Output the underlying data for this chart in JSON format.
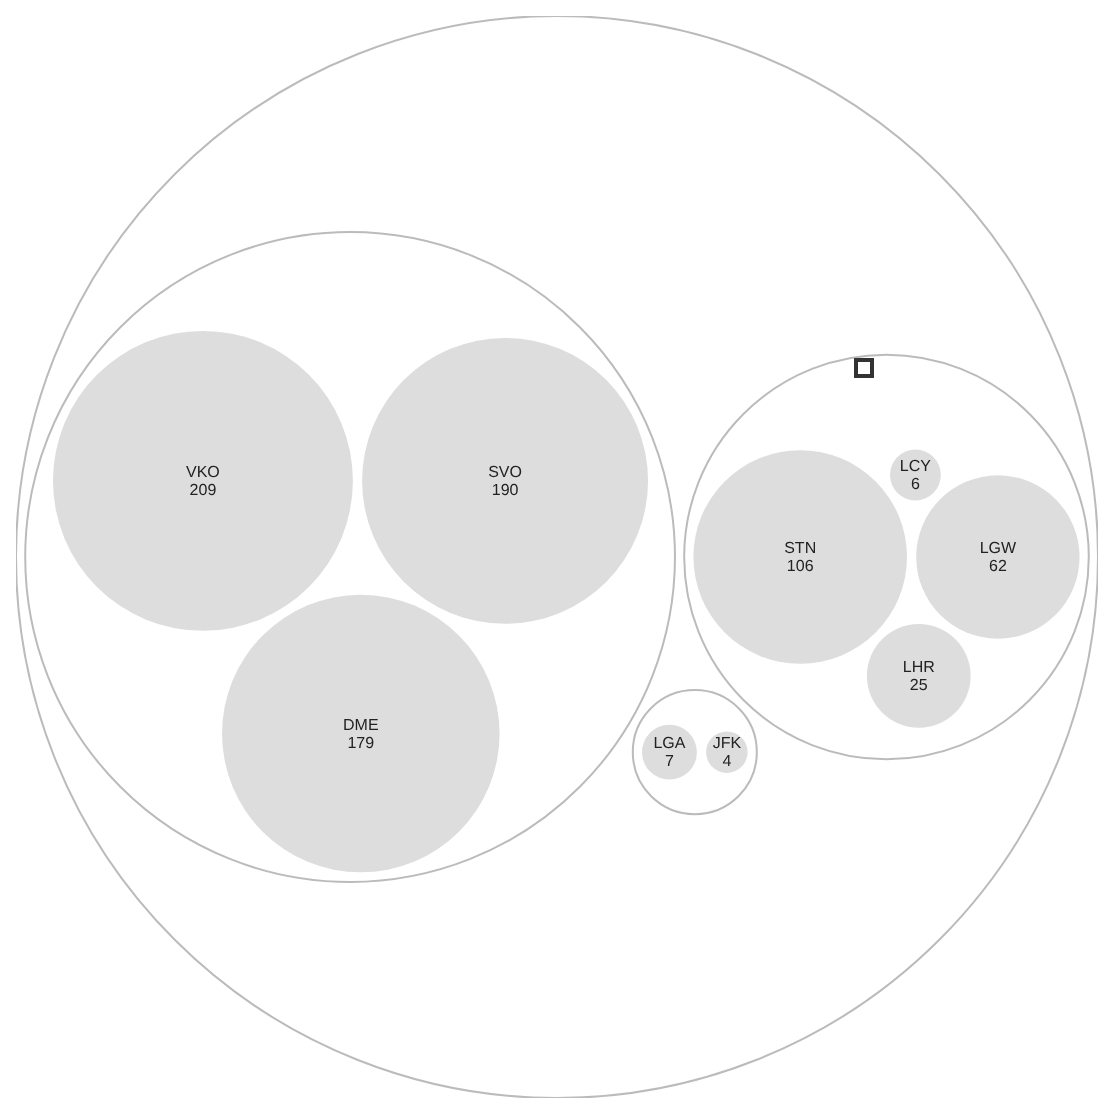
{
  "chart_data": {
    "type": "other",
    "categories": [
      "VKO",
      "SVO",
      "DME",
      "STN",
      "LCY",
      "LGW",
      "LHR",
      "LGA",
      "JFK"
    ],
    "series": [
      {
        "color": "#dddddd",
        "values": [
          209,
          190,
          179,
          null,
          null,
          null,
          null,
          null,
          null
        ]
      },
      {
        "color": "#dddddd",
        "values": [
          null,
          null,
          null,
          106,
          6,
          62,
          25,
          null,
          null
        ]
      },
      {
        "color": "#dddddd",
        "values": [
          null,
          null,
          null,
          null,
          null,
          null,
          null,
          7,
          4
        ]
      }
    ],
    "data_labels": true
  }
}
